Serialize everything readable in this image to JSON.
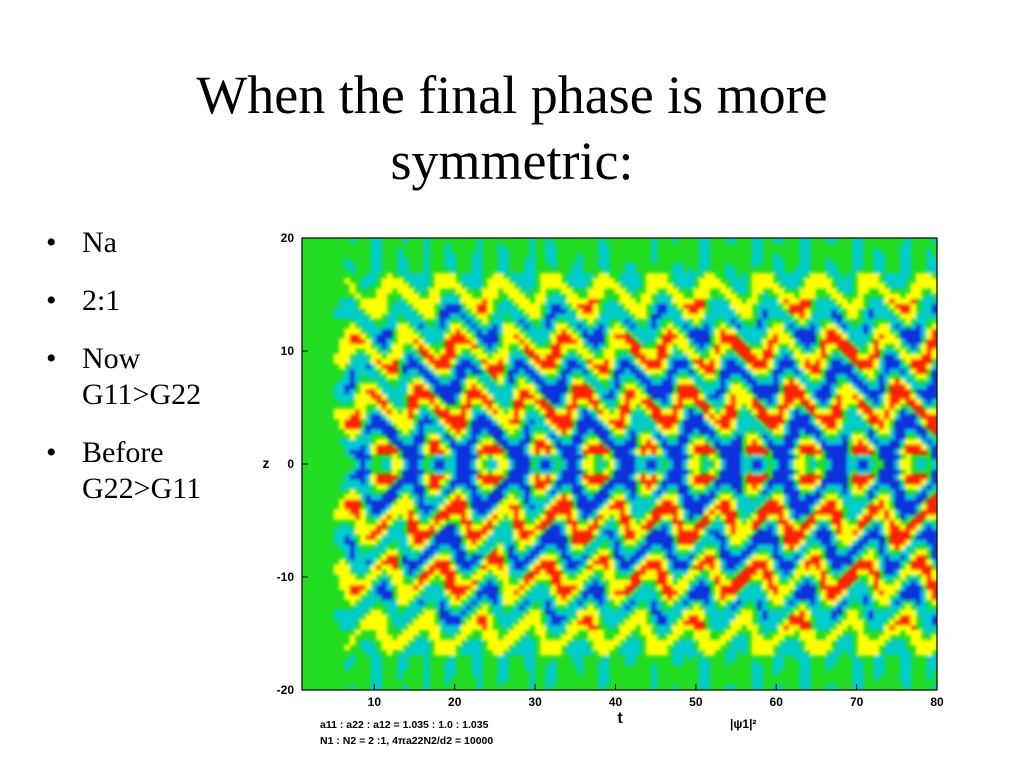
{
  "slide": {
    "title_line1": "When the final phase is more",
    "title_line2": "symmetric:",
    "bullets": [
      {
        "line1": "Na",
        "line2": ""
      },
      {
        "line1": "2:1",
        "line2": ""
      },
      {
        "line1": "Now",
        "line2": "G11>G22"
      },
      {
        "line1": "Before",
        "line2": "G22>G11"
      }
    ],
    "bullet_glyph": "•"
  },
  "chart_data": {
    "type": "heatmap",
    "xlabel": "t",
    "ylabel": "z",
    "colorbar_label": "|ψ1|²",
    "x_ticks": [
      10,
      20,
      30,
      40,
      50,
      60,
      70,
      80
    ],
    "y_ticks": [
      -20,
      -10,
      0,
      10,
      20
    ],
    "xlim": [
      1,
      80
    ],
    "ylim": [
      -20,
      20
    ],
    "grid": false,
    "legend": "none",
    "caption_line1": "a11 : a22 : a12 = 1.035 : 1.0 : 1.035",
    "caption_line2": "N1 : N2 = 2 :1,  4πa22N2/d2 = 10000",
    "colors": {
      "background": "#22dd22",
      "low": "#1133dd",
      "mid_low": "#00cccc",
      "mid": "#33dd33",
      "mid_high": "#ffff00",
      "high": "#ff2200"
    }
  }
}
